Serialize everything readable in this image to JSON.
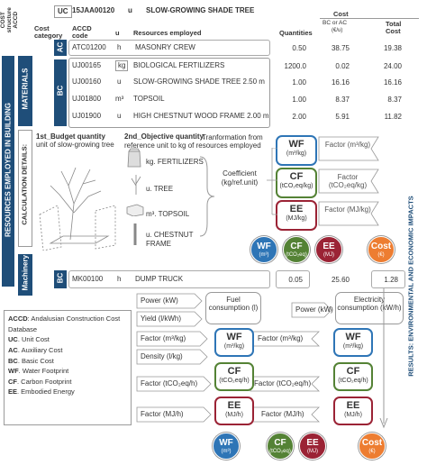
{
  "colors": {
    "blue": "#1f4e79",
    "wf": "#2e75b6",
    "cf": "#548235",
    "ee": "#9b2335",
    "cost": "#ed7d31",
    "line": "#9a9a9a"
  },
  "header": {
    "cost_structure": "COST structure ACCD",
    "uc_tag": "UC",
    "uc_code": "15JAA00120",
    "uc_unit": "u",
    "uc_name": "SLOW-GROWING SHADE TREE",
    "cost_category": "Cost category",
    "accd_code": "ACCD code",
    "u": "u",
    "resources_employed": "Resources employed",
    "quantities": "Quantities",
    "cost": "Cost",
    "bc_or_ac": "BC or AC",
    "unit_cost": "(€/u)",
    "total_cost": "Total Cost"
  },
  "ac": {
    "tag": "AC",
    "code": "ATC01200",
    "unit": "h",
    "name": "MASONRY CREW",
    "qty": "0.50",
    "cost": "38.75",
    "total": "19.38"
  },
  "materials": {
    "label": "MATERIALS",
    "tag": "BC",
    "rows": [
      {
        "code": "UJ00165",
        "unit": "kg",
        "name": "BIOLOGICAL FERTILIZERS",
        "qty": "1200.0",
        "cost": "0.02",
        "total": "24.00"
      },
      {
        "code": "UJ00160",
        "unit": "u",
        "name": "SLOW-GROWING SHADE TREE 2.50 m",
        "qty": "1.00",
        "cost": "16.16",
        "total": "16.16"
      },
      {
        "code": "UJ01800",
        "unit": "m³",
        "name": "TOPSOIL",
        "qty": "1.00",
        "cost": "8.37",
        "total": "8.37"
      },
      {
        "code": "UJ01900",
        "unit": "u",
        "name": "HIGH CHESTNUT WOOD FRAME 2.00 m",
        "qty": "2.00",
        "cost": "5.91",
        "total": "11.82"
      }
    ]
  },
  "resources_in_building": "RESOURCES EMPLOYED IN BUILDING",
  "calc_details": "CALCULATION DETAILS:",
  "budget_quantity": "1st_Budget quantity",
  "budget_quantity_desc": "unit of slow-growing tree",
  "objective_quantity": "2nd_Objective quantity.",
  "objective_quantity_desc": "Tranformation from reference unit to kg of resources employed",
  "calc_items": [
    "kg. FERTILIZERS",
    "u. TREE",
    "m³. TOPSOIL",
    "u. CHESTNUT FRAME"
  ],
  "coefficient": "Coefficient (kg/ref.unit)",
  "wf": {
    "abbr": "WF",
    "unit": "(m³/kg)",
    "factor": "Factor (m³/kg)"
  },
  "cf": {
    "abbr": "CF",
    "unit": "(tCO₂eq/kg)",
    "factor": "Factor (tCO₂eq/kg)"
  },
  "ee": {
    "abbr": "EE",
    "unit": "(MJ/kg)",
    "factor": "Factor (MJ/kg)"
  },
  "circles_top": [
    {
      "abbr": "WF",
      "unit": "(m³)"
    },
    {
      "abbr": "CF",
      "unit": "(tCO₂eq)"
    },
    {
      "abbr": "EE",
      "unit": "(MJ)"
    },
    {
      "abbr": "Cost",
      "unit": "(€)"
    }
  ],
  "machinery": {
    "label": "Machinery",
    "tag": "BC",
    "code": "MK00100",
    "unit": "h",
    "name": "DUMP TRUCK",
    "qty": "0.05",
    "cost": "25.60",
    "total": "1.28"
  },
  "mach_calc": {
    "power": "Power (kW)",
    "yield": "Yield (l/kWh)",
    "fuel": "Fuel consumption (l)",
    "power2": "Power (kW)",
    "elec": "Electricity consumption (kW/h)",
    "factor_wf_l": "Factor (m³/kg)",
    "density": "Density (l/kg)",
    "factor_cf_l": "Factor (tCO₂eq/h)",
    "factor_ee_l": "Factor (MJ/h)",
    "factor_wf_r": "Factor (m³/kg)",
    "factor_cf_r": "Factor (tCO₂eq/h)",
    "factor_ee_r": "Factor (MJ/h)",
    "wf_unit": "(m³/kg)",
    "cf_unit": "(tCO₂eq/h)",
    "ee_unit": "(MJ/h)"
  },
  "results": "RESULTS: ENVIRONMENTAL AND ECONOMIC IMPACTS",
  "legend": [
    {
      "k": "ACCD",
      "v": ": Andalusian Construction Cost Database"
    },
    {
      "k": "UC",
      "v": ". Unit Cost"
    },
    {
      "k": "AC",
      "v": ". Auxiliary Cost"
    },
    {
      "k": "BC",
      "v": ". Basic Cost"
    },
    {
      "k": "WF",
      "v": ". Water Footprint"
    },
    {
      "k": "CF",
      "v": ". Carbon Footprint"
    },
    {
      "k": "EE",
      "v": ". Embodied Energy"
    }
  ],
  "circles_bottom": [
    {
      "abbr": "WF",
      "unit": "(m³)"
    },
    {
      "abbr": "CF",
      "unit": "(tCO₂eq)"
    },
    {
      "abbr": "EE",
      "unit": "(MJ)"
    },
    {
      "abbr": "Cost",
      "unit": "(€)"
    }
  ]
}
